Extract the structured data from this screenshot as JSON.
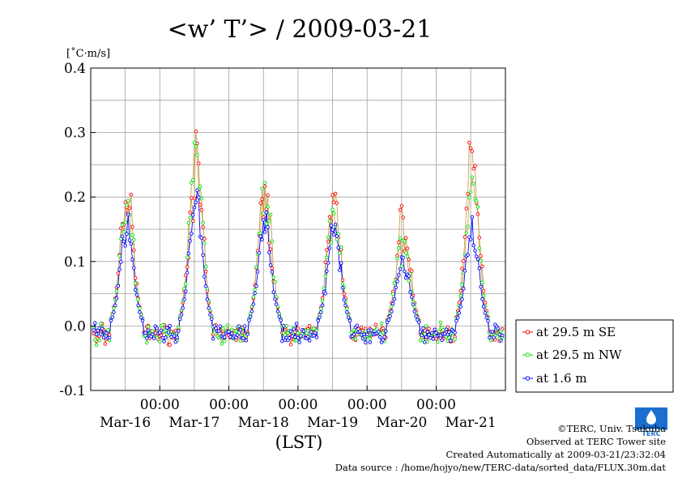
{
  "colors": {
    "series_se": "#ff0000",
    "series_nw": "#00e000",
    "series_ground": "#0000ff",
    "line_se_nw": "#c8a050",
    "grid": "#a0a0a0",
    "logo": "#1a6fd0"
  },
  "chart_data": {
    "type": "scatter",
    "title": "<w’ T’> / 2009-03-21",
    "ylabel": "[˚C·m/s]",
    "xlabel": "(LST)",
    "ylim": [
      -0.1,
      0.4
    ],
    "xlim_days": [
      "Mar-15 12:00",
      "Mar-21 24:00"
    ],
    "yticks": [
      "0.4",
      "0.3",
      "0.2",
      "0.1",
      "0.0",
      "-0.1"
    ],
    "yticks_values": [
      0.4,
      0.3,
      0.2,
      0.1,
      0.0,
      -0.1
    ],
    "xticks_time": [
      "00:00",
      "00:00",
      "00:00",
      "00:00",
      "00:00"
    ],
    "xticks_date": [
      "Mar-16",
      "Mar-17",
      "Mar-18",
      "Mar-19",
      "Mar-20",
      "Mar-21"
    ],
    "grid": true,
    "legend_position": "bottom-right outside",
    "days": [
      "2009-03-16",
      "2009-03-17",
      "2009-03-18",
      "2009-03-19",
      "2009-03-20",
      "2009-03-21"
    ],
    "daily_peak_se": [
      0.23,
      0.29,
      0.23,
      0.23,
      0.19,
      0.29
    ],
    "daily_peak_nw": [
      0.22,
      0.31,
      0.24,
      0.21,
      0.16,
      0.25
    ],
    "daily_peak_ground": [
      0.17,
      0.22,
      0.18,
      0.17,
      0.12,
      0.16
    ],
    "series": [
      {
        "name": "at 29.5 m SE",
        "color": "#ff0000"
      },
      {
        "name": "at 29.5 m NW",
        "color": "#00e000"
      },
      {
        "name": "at 1.6 m",
        "color": "#0000ff"
      }
    ]
  },
  "footer": {
    "copyright": "©TERC, Univ. Tsukuba",
    "observed": "Observed at TERC Tower site",
    "created": "Created Automatically at 2009-03-21/23:32:04",
    "source": "Data source : /home/hojyo/new/TERC-data/sorted_data/FLUX.30m.dat"
  },
  "logo": {
    "icon": "terc-logo-icon",
    "text": "TERC"
  }
}
